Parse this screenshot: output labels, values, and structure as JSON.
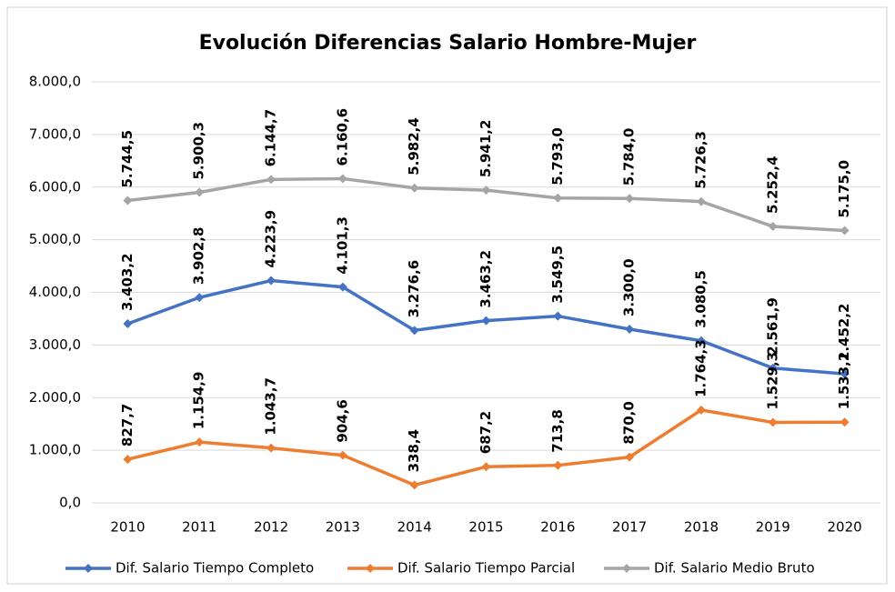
{
  "chart_data": {
    "type": "line",
    "title": "Evolución Diferencias Salario Hombre-Mujer",
    "categories": [
      "2010",
      "2011",
      "2012",
      "2013",
      "2014",
      "2015",
      "2016",
      "2017",
      "2018",
      "2019",
      "2020"
    ],
    "series": [
      {
        "name": "Dif. Salario Tiempo Completo",
        "color": "#4472c4",
        "values": [
          3403.2,
          3902.8,
          4223.9,
          4101.3,
          3276.6,
          3463.2,
          3549.5,
          3300.0,
          3080.5,
          2561.9,
          2452.2
        ],
        "value_labels": [
          "3.403,2",
          "3.902,8",
          "4.223,9",
          "4.101,3",
          "3.276,6",
          "3.463,2",
          "3.549,5",
          "3.300,0",
          "3.080,5",
          "2.561,9",
          "2.452,2"
        ]
      },
      {
        "name": "Dif. Salario Tiempo Parcial",
        "color": "#ed7d31",
        "values": [
          827.7,
          1154.9,
          1043.7,
          904.6,
          338.4,
          687.2,
          713.8,
          870.0,
          1764.3,
          1529.3,
          1533.1
        ],
        "value_labels": [
          "827,7",
          "1.154,9",
          "1.043,7",
          "904,6",
          "338,4",
          "687,2",
          "713,8",
          "870,0",
          "1.764,3",
          "1.529,3",
          "1.533,1"
        ]
      },
      {
        "name": "Dif. Salario Medio Bruto",
        "color": "#a5a5a5",
        "values": [
          5744.5,
          5900.3,
          6144.7,
          6160.6,
          5982.4,
          5941.2,
          5793.0,
          5784.0,
          5726.3,
          5252.4,
          5175.0
        ],
        "value_labels": [
          "5.744,5",
          "5.900,3",
          "6.144,7",
          "6.160,6",
          "5.982,4",
          "5.941,2",
          "5.793,0",
          "5.784,0",
          "5.726,3",
          "5.252,4",
          "5.175,0"
        ]
      }
    ],
    "ylim": [
      0,
      8000
    ],
    "yticks": [
      {
        "value": 0,
        "label": "0,0"
      },
      {
        "value": 1000,
        "label": "1.000,0"
      },
      {
        "value": 2000,
        "label": "2.000,0"
      },
      {
        "value": 3000,
        "label": "3.000,0"
      },
      {
        "value": 4000,
        "label": "4.000,0"
      },
      {
        "value": 5000,
        "label": "5.000,0"
      },
      {
        "value": 6000,
        "label": "6.000,0"
      },
      {
        "value": 7000,
        "label": "7.000,0"
      },
      {
        "value": 8000,
        "label": "8.000,0"
      }
    ],
    "grid": true,
    "legend": "bottom"
  }
}
